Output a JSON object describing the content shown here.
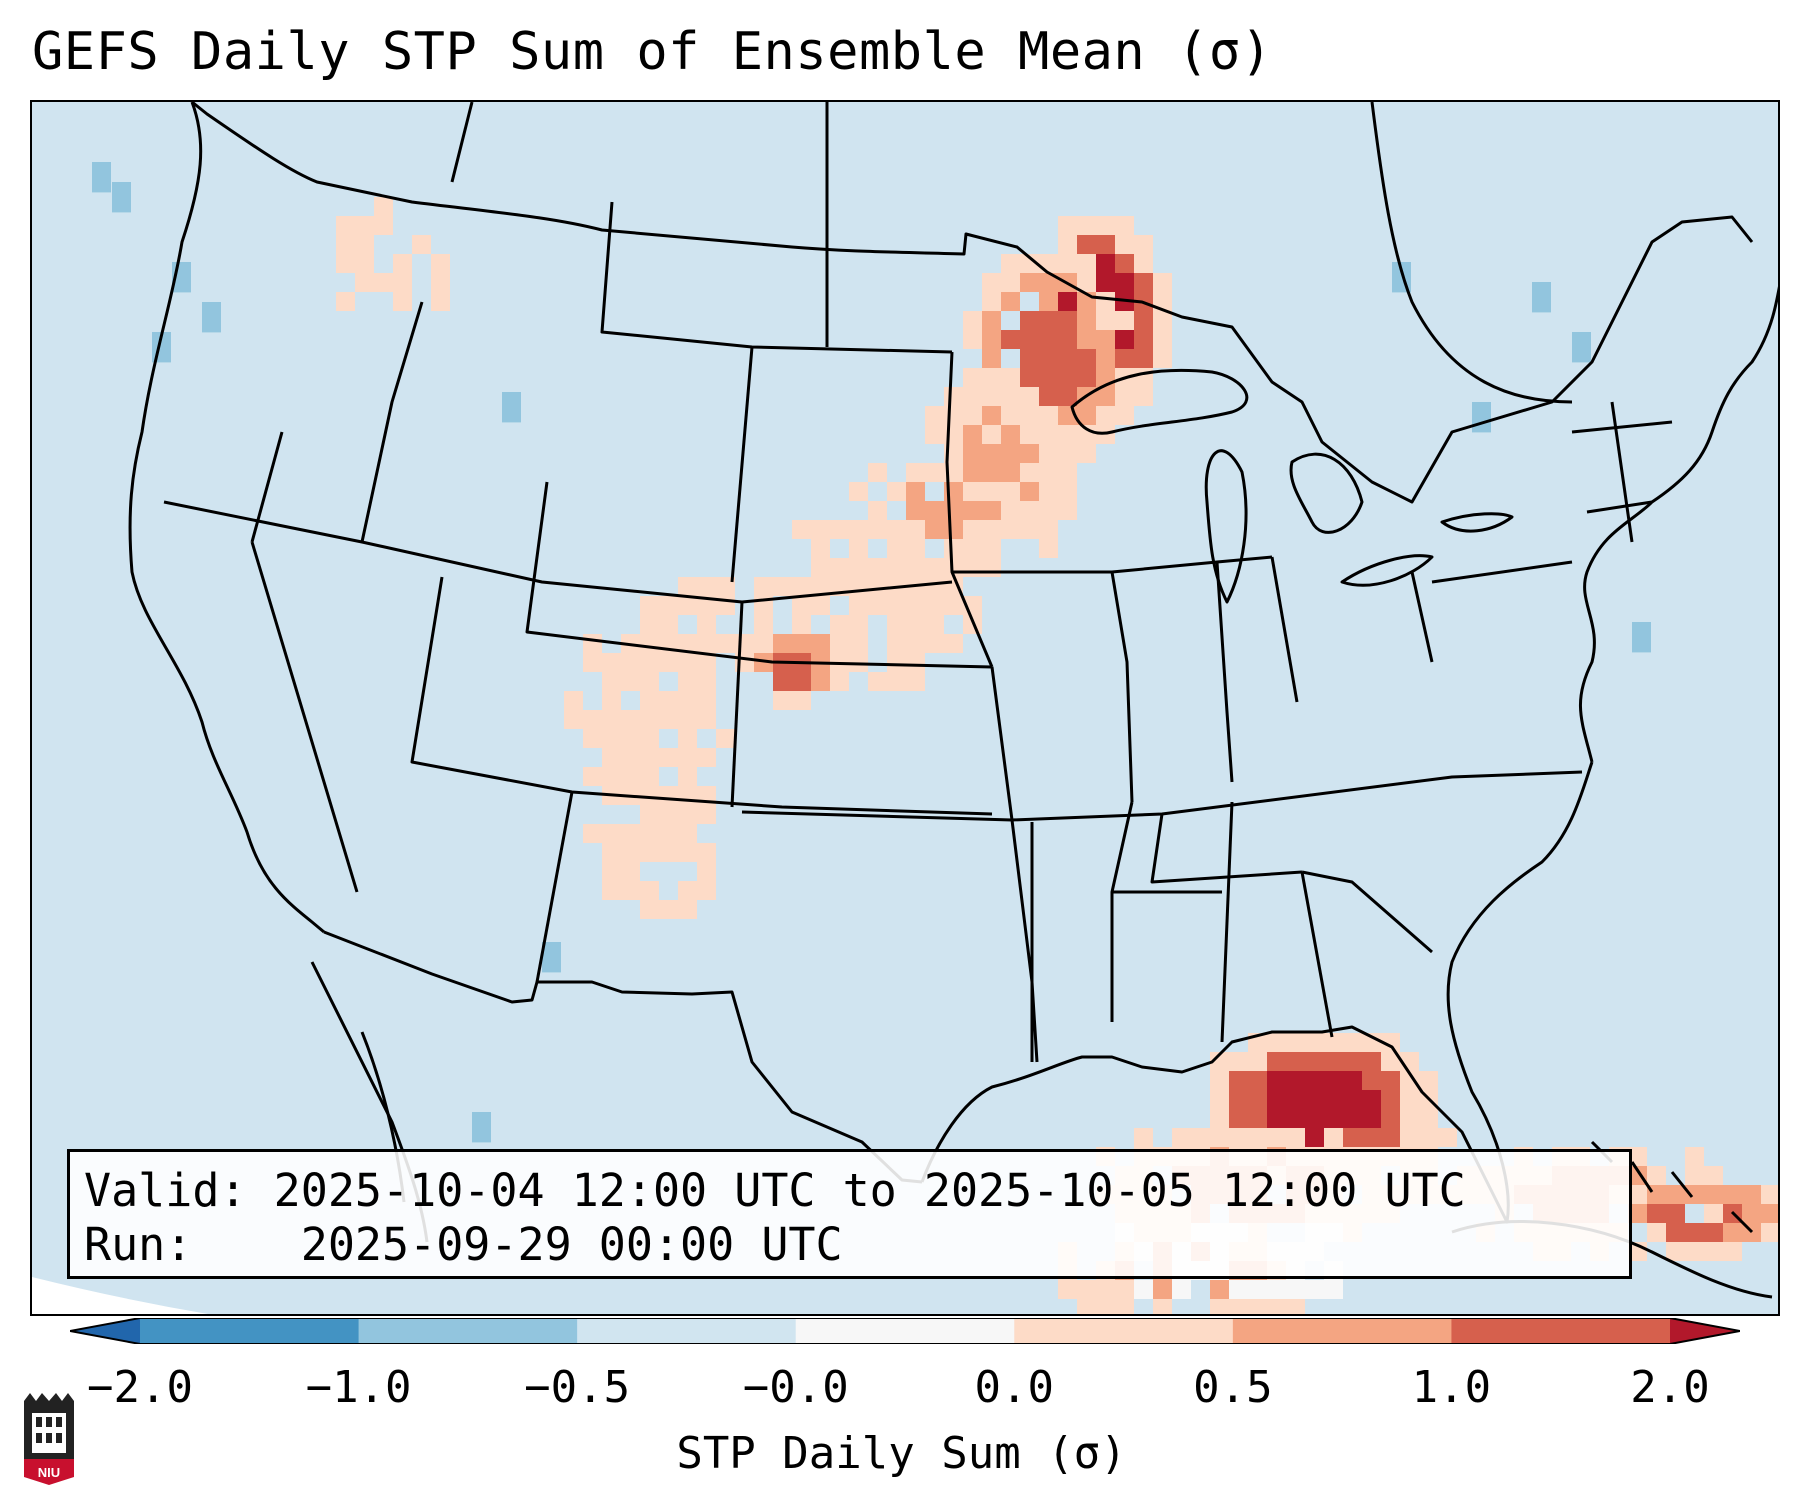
{
  "title": "GEFS Daily STP Sum of Ensemble Mean (σ)",
  "info_box": {
    "valid_label": "Valid:",
    "valid_range": "2025-10-04 12:00 UTC to 2025-10-05 12:00 UTC",
    "run_label": "Run:",
    "run_time": "2025-09-29 00:00 UTC"
  },
  "colorbar": {
    "label": "STP Daily Sum (σ)",
    "ticks": [
      "−2.0",
      "−1.0",
      "−0.5",
      "−0.0",
      "0.0",
      "0.5",
      "1.0",
      "2.0"
    ],
    "bins": [
      {
        "range": "< -2.0",
        "color": "#2166ac"
      },
      {
        "range": "-2.0 to -1.0",
        "color": "#4393c3"
      },
      {
        "range": "-1.0 to -0.5",
        "color": "#92c5de"
      },
      {
        "range": "-0.5 to -0.0",
        "color": "#d1e5f0"
      },
      {
        "range": "-0.0 to 0.0",
        "color": "#f7f7f7"
      },
      {
        "range": "0.0 to 0.5",
        "color": "#fddbc7"
      },
      {
        "range": "0.5 to 1.0",
        "color": "#f4a582"
      },
      {
        "range": "1.0 to 2.0",
        "color": "#d6604d"
      },
      {
        "range": "> 2.0",
        "color": "#b2182b"
      }
    ]
  },
  "map": {
    "background_color": "#d1e5f0",
    "regions": [
      {
        "name": "Minnesota / Upper Midwest",
        "intensity": "> 2.0"
      },
      {
        "name": "Nebraska / Dakotas",
        "intensity": "0.5 to 2.0"
      },
      {
        "name": "Colorado / New Mexico",
        "intensity": "0.0 to 1.0"
      },
      {
        "name": "Gulf of Mexico / Florida",
        "intensity": "> 2.0"
      },
      {
        "name": "Bahamas",
        "intensity": "1.0 to 2.0"
      }
    ]
  },
  "logo": {
    "text": "NIU"
  }
}
